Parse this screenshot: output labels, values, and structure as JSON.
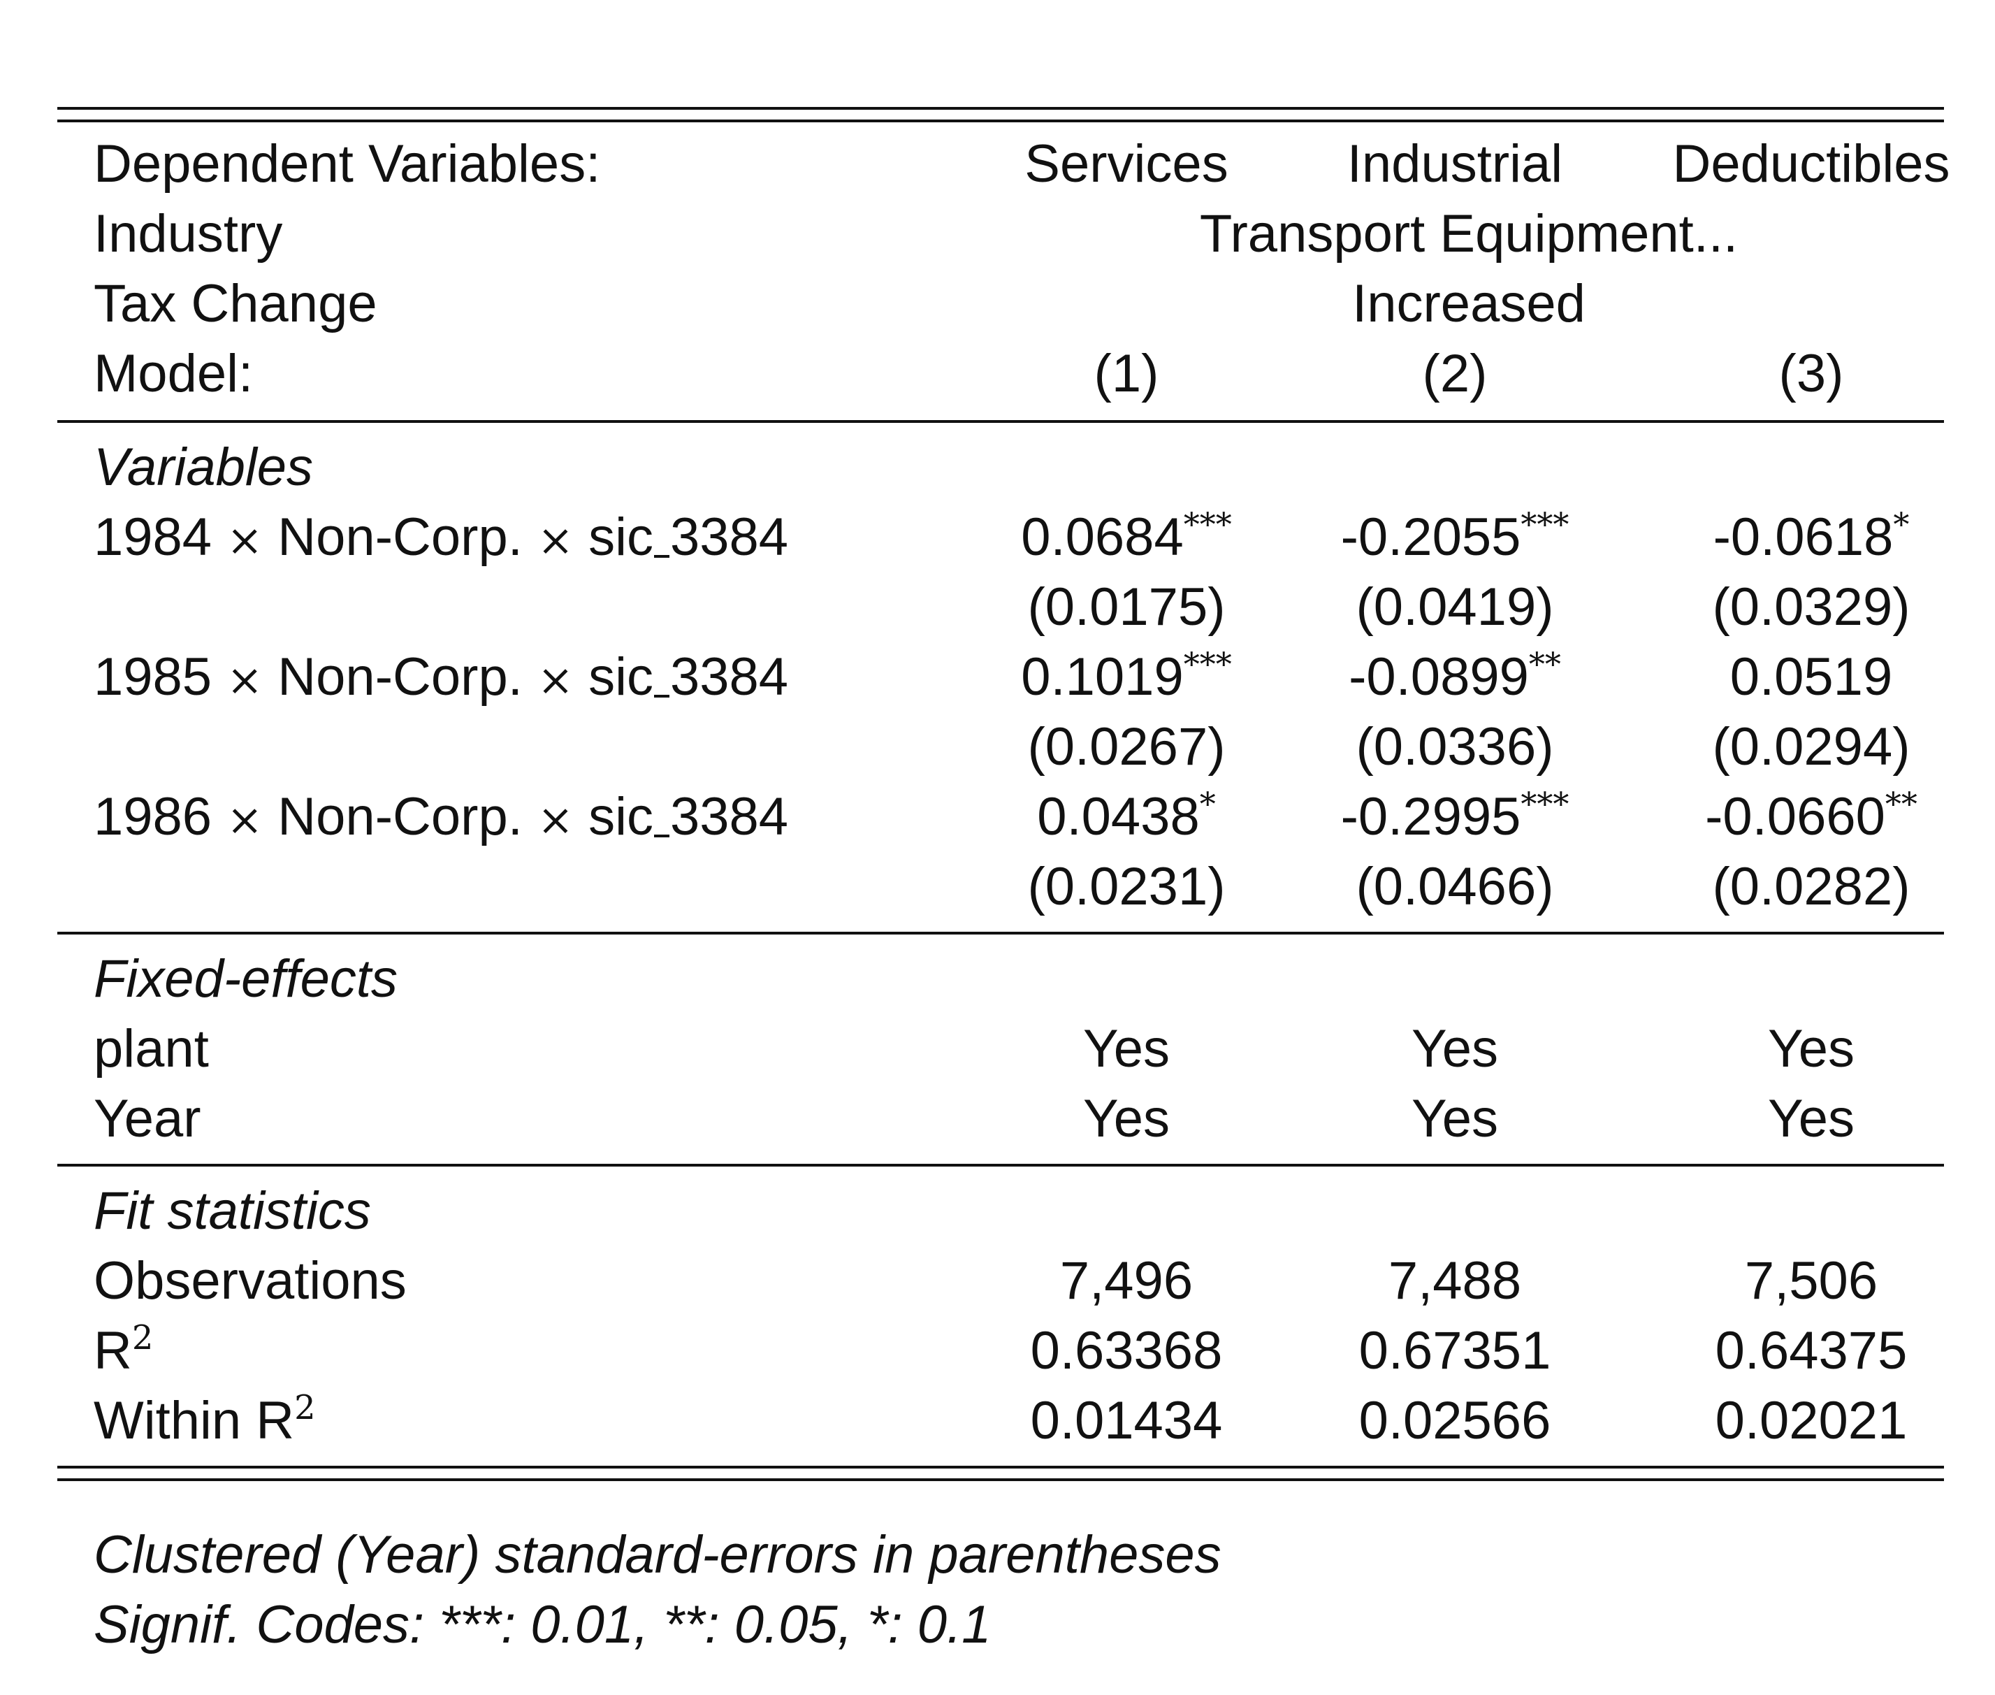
{
  "header": {
    "dep_label": "Dependent Variables:",
    "dep_vars": [
      "Services",
      "Industrial",
      "Deductibles"
    ],
    "industry_label": "Industry",
    "industry_value": "Transport Equipment...",
    "tax_label": "Tax Change",
    "tax_value": "Increased",
    "model_label": "Model:",
    "models": [
      "(1)",
      "(2)",
      "(3)"
    ]
  },
  "variables": {
    "section_title": "Variables",
    "rows": [
      {
        "year": "1984",
        "mid": "Non-Corp.",
        "sic_prefix": "sic",
        "sic_code": "3384",
        "coefs": [
          {
            "value": "0.0684",
            "stars": "***"
          },
          {
            "value": "-0.2055",
            "stars": "***"
          },
          {
            "value": "-0.0618",
            "stars": "*"
          }
        ],
        "ses": [
          "(0.0175)",
          "(0.0419)",
          "(0.0329)"
        ]
      },
      {
        "year": "1985",
        "mid": "Non-Corp.",
        "sic_prefix": "sic",
        "sic_code": "3384",
        "coefs": [
          {
            "value": "0.1019",
            "stars": "***"
          },
          {
            "value": "-0.0899",
            "stars": "**"
          },
          {
            "value": "0.0519",
            "stars": ""
          }
        ],
        "ses": [
          "(0.0267)",
          "(0.0336)",
          "(0.0294)"
        ]
      },
      {
        "year": "1986",
        "mid": "Non-Corp.",
        "sic_prefix": "sic",
        "sic_code": "3384",
        "coefs": [
          {
            "value": "0.0438",
            "stars": "*"
          },
          {
            "value": "-0.2995",
            "stars": "***"
          },
          {
            "value": "-0.0660",
            "stars": "**"
          }
        ],
        "ses": [
          "(0.0231)",
          "(0.0466)",
          "(0.0282)"
        ]
      }
    ]
  },
  "fixed_effects": {
    "section_title": "Fixed-effects",
    "rows": [
      {
        "label": "plant",
        "values": [
          "Yes",
          "Yes",
          "Yes"
        ]
      },
      {
        "label": "Year",
        "values": [
          "Yes",
          "Yes",
          "Yes"
        ]
      }
    ]
  },
  "fit": {
    "section_title": "Fit statistics",
    "observations_label": "Observations",
    "observations": [
      "7,496",
      "7,488",
      "7,506"
    ],
    "r2_label": "R",
    "r2_sup": "2",
    "r2": [
      "0.63368",
      "0.67351",
      "0.64375"
    ],
    "within_label": "Within R",
    "within_sup": "2",
    "within_r2": [
      "0.01434",
      "0.02566",
      "0.02021"
    ]
  },
  "notes": {
    "line1": "Clustered (Year) standard-errors in parentheses",
    "line2": "Signif. Codes: ***: 0.01, **: 0.05, *: 0.1"
  },
  "symbols": {
    "times": "×"
  }
}
